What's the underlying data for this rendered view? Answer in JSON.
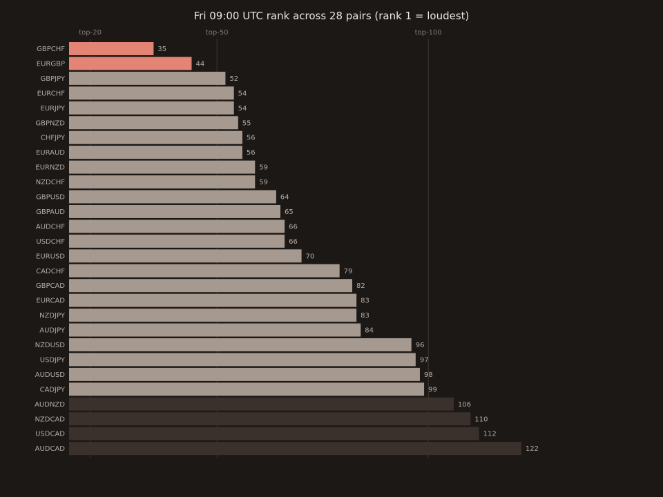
{
  "chart_data": {
    "type": "bar",
    "orientation": "horizontal",
    "title": "Fri 09:00 UTC rank across 28 pairs (rank 1 = loudest)",
    "xlabel": "",
    "ylabel": "",
    "xlim": [
      15,
      140
    ],
    "grid": false,
    "reference_lines": [
      {
        "value": 20,
        "label": "top-20"
      },
      {
        "value": 50,
        "label": "top-50"
      },
      {
        "value": 100,
        "label": "top-100"
      }
    ],
    "colors": {
      "top_tier": "#e38474",
      "mid_tier": "#a69a90",
      "low_tier": "#3a302c",
      "background": "#1c1816",
      "reference_line": "#3e3733"
    },
    "categories": [
      "GBPCHF",
      "EURGBP",
      "GBPJPY",
      "EURCHF",
      "EURJPY",
      "GBPNZD",
      "CHFJPY",
      "EURAUD",
      "EURNZD",
      "NZDCHF",
      "GBPUSD",
      "GBPAUD",
      "AUDCHF",
      "USDCHF",
      "EURUSD",
      "CADCHF",
      "GBPCAD",
      "EURCAD",
      "NZDJPY",
      "AUDJPY",
      "NZDUSD",
      "USDJPY",
      "AUDUSD",
      "CADJPY",
      "AUDNZD",
      "NZDCAD",
      "USDCAD",
      "AUDCAD"
    ],
    "values": [
      35,
      44,
      52,
      54,
      54,
      55,
      56,
      56,
      59,
      59,
      64,
      65,
      66,
      66,
      70,
      79,
      82,
      83,
      83,
      84,
      96,
      97,
      98,
      99,
      106,
      110,
      112,
      122
    ]
  }
}
